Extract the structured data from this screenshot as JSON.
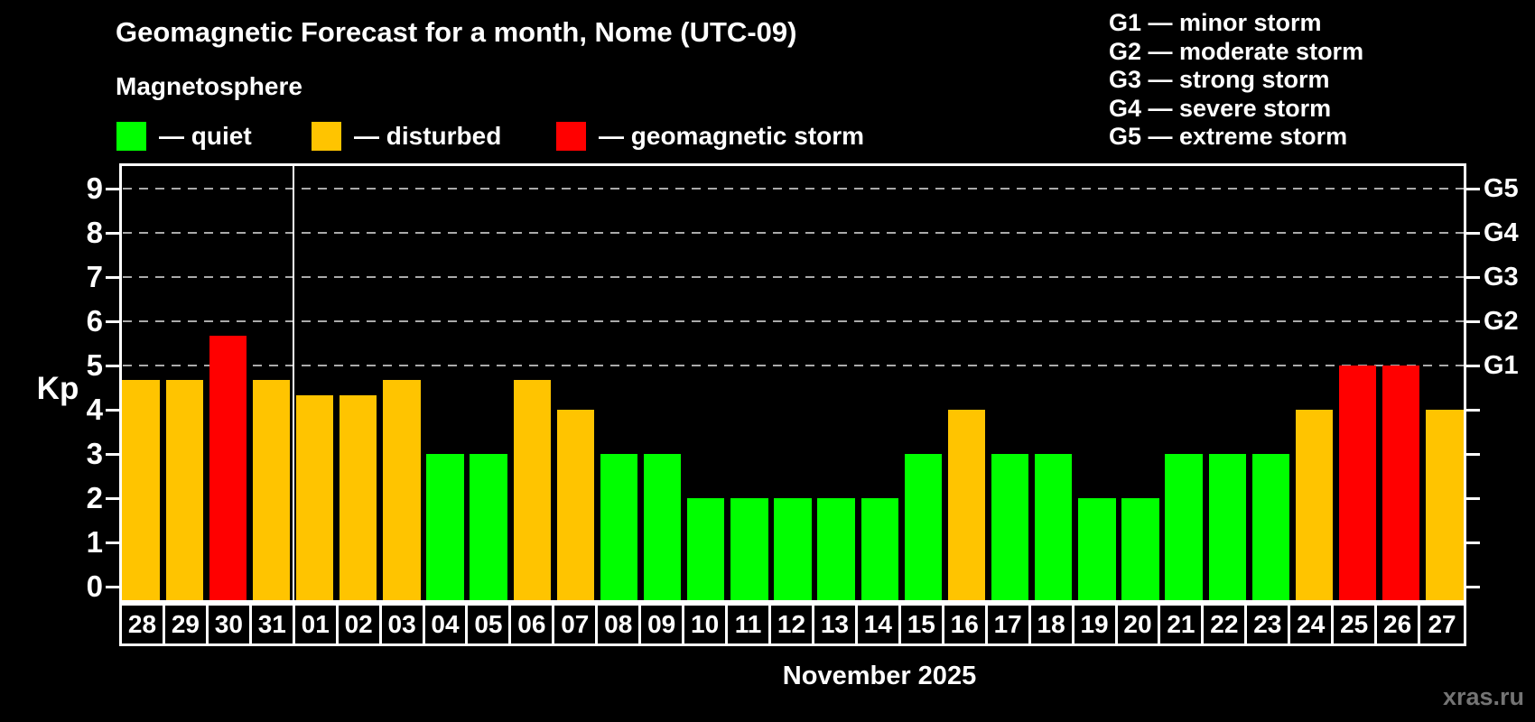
{
  "header": {
    "title": "Geomagnetic Forecast for a month, Nome (UTC-09)",
    "subtitle": "Magnetosphere"
  },
  "legend": {
    "items": [
      {
        "name": "quiet",
        "label": "— quiet",
        "color": "#00ff00"
      },
      {
        "name": "disturbed",
        "label": "— disturbed",
        "color": "#ffc400"
      },
      {
        "name": "storm",
        "label": "— geomagnetic storm",
        "color": "#ff0000"
      }
    ]
  },
  "g_scale_legend": {
    "items": [
      "G1 — minor storm",
      "G2 — moderate storm",
      "G3 — strong storm",
      "G4 — severe storm",
      "G5 — extreme storm"
    ]
  },
  "axis": {
    "kp_label": "Kp",
    "y_ticks": [
      0,
      1,
      2,
      3,
      4,
      5,
      6,
      7,
      8,
      9
    ],
    "right_ticks": [
      {
        "label": "G1",
        "kp": 5
      },
      {
        "label": "G2",
        "kp": 6
      },
      {
        "label": "G3",
        "kp": 7
      },
      {
        "label": "G4",
        "kp": 8
      },
      {
        "label": "G5",
        "kp": 9
      }
    ]
  },
  "footer": {
    "month_label": "November 2025",
    "watermark": "xras.ru"
  },
  "chart_data": {
    "type": "bar",
    "title": "Geomagnetic Forecast for a month, Nome (UTC-09)",
    "subtitle": "Magnetosphere",
    "xlabel": "November 2025",
    "ylabel": "Kp",
    "ylim": [
      0,
      9
    ],
    "grid": "horizontal dashed gridlines at Kp 5,6,7,8,9",
    "gridlines_kp": [
      5,
      6,
      7,
      8,
      9
    ],
    "legend_position": "top-left",
    "categories": [
      "28",
      "29",
      "30",
      "31",
      "01",
      "02",
      "03",
      "04",
      "05",
      "06",
      "07",
      "08",
      "09",
      "10",
      "11",
      "12",
      "13",
      "14",
      "15",
      "16",
      "17",
      "18",
      "19",
      "20",
      "21",
      "22",
      "23",
      "24",
      "25",
      "26",
      "27"
    ],
    "values": [
      4.67,
      4.67,
      5.67,
      4.67,
      4.33,
      4.33,
      4.67,
      3,
      3,
      4.67,
      4,
      3,
      3,
      2,
      2,
      2,
      2,
      2,
      3,
      4,
      3,
      3,
      2,
      2,
      3,
      3,
      3,
      4,
      5,
      5,
      4
    ],
    "statuses": [
      "disturbed",
      "disturbed",
      "storm",
      "disturbed",
      "disturbed",
      "disturbed",
      "disturbed",
      "quiet",
      "quiet",
      "disturbed",
      "disturbed",
      "quiet",
      "quiet",
      "quiet",
      "quiet",
      "quiet",
      "quiet",
      "quiet",
      "quiet",
      "disturbed",
      "quiet",
      "quiet",
      "quiet",
      "quiet",
      "quiet",
      "quiet",
      "quiet",
      "disturbed",
      "storm",
      "storm",
      "disturbed"
    ],
    "colors": {
      "quiet": "#00ff00",
      "disturbed": "#ffc400",
      "storm": "#ff0000"
    },
    "month_separator_after_index": 3
  }
}
